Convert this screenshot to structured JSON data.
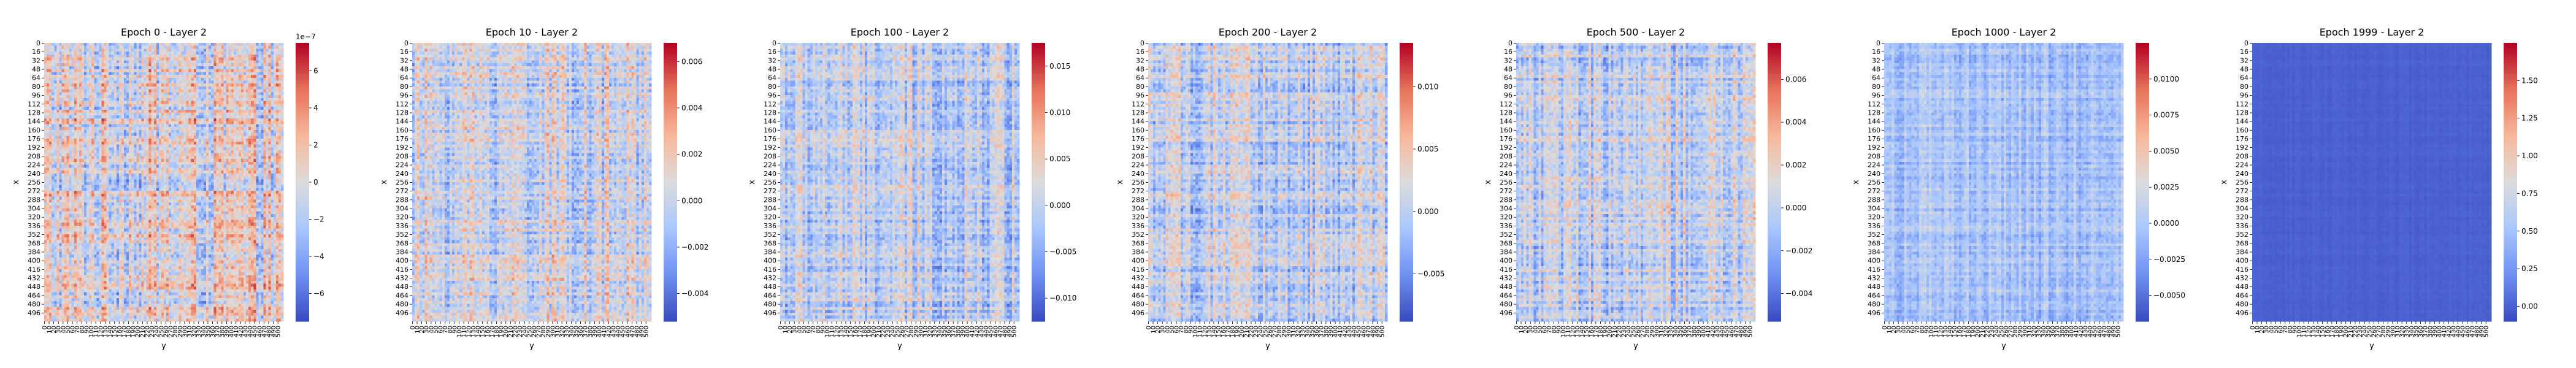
{
  "figure": {
    "panel_count": 7
  },
  "colormap": {
    "name": "coolwarm",
    "stops": [
      "#3b4cc0",
      "#6f92f3",
      "#aac7fd",
      "#dddcdc",
      "#f7b89c",
      "#e7745b",
      "#b40426"
    ]
  },
  "chart_data": [
    {
      "type": "heatmap",
      "title": "Epoch 0 - Layer 2",
      "xlabel": "y",
      "ylabel": "x",
      "x_ticks": [
        "0",
        "10",
        "20",
        "30",
        "40",
        "50",
        "60",
        "70",
        "80",
        "90",
        "100",
        "110",
        "120",
        "130",
        "140",
        "150",
        "160",
        "170",
        "180",
        "190",
        "200",
        "210",
        "220",
        "230",
        "240",
        "250",
        "260",
        "270",
        "280",
        "290",
        "300",
        "310",
        "320",
        "330",
        "340",
        "350",
        "360",
        "370",
        "380",
        "390",
        "400",
        "410",
        "420",
        "430",
        "440",
        "450",
        "460",
        "470",
        "480",
        "490",
        "500"
      ],
      "y_ticks": [
        "0",
        "16",
        "32",
        "48",
        "64",
        "80",
        "96",
        "112",
        "128",
        "144",
        "160",
        "176",
        "192",
        "208",
        "224",
        "240",
        "256",
        "272",
        "288",
        "304",
        "320",
        "336",
        "352",
        "368",
        "384",
        "400",
        "416",
        "432",
        "448",
        "464",
        "480",
        "496"
      ],
      "grid_size": [
        512,
        512
      ],
      "colorbar": {
        "range": [
          -7.5e-07,
          7.5e-07
        ],
        "ticks": [
          "6",
          "4",
          "2",
          "0",
          "−2",
          "−4",
          "−6"
        ],
        "tick_values": [
          6e-07,
          4e-07,
          2e-07,
          0,
          -2e-07,
          -4e-07,
          -6e-07
        ],
        "scale_label": "1e−7"
      },
      "dominant_level": 0.5,
      "contrast": 0.45
    },
    {
      "type": "heatmap",
      "title": "Epoch 10 - Layer 2",
      "xlabel": "y",
      "ylabel": "x",
      "x_ticks": [
        "0",
        "10",
        "20",
        "30",
        "40",
        "50",
        "60",
        "70",
        "80",
        "90",
        "100",
        "110",
        "120",
        "130",
        "140",
        "150",
        "160",
        "170",
        "180",
        "190",
        "200",
        "210",
        "220",
        "230",
        "240",
        "250",
        "260",
        "270",
        "280",
        "290",
        "300",
        "310",
        "320",
        "330",
        "340",
        "350",
        "360",
        "370",
        "380",
        "390",
        "400",
        "410",
        "420",
        "430",
        "440",
        "450",
        "460",
        "470",
        "480",
        "490",
        "500"
      ],
      "y_ticks": [
        "0",
        "16",
        "32",
        "48",
        "64",
        "80",
        "96",
        "112",
        "128",
        "144",
        "160",
        "176",
        "192",
        "208",
        "224",
        "240",
        "256",
        "272",
        "288",
        "304",
        "320",
        "336",
        "352",
        "368",
        "384",
        "400",
        "416",
        "432",
        "448",
        "464",
        "480",
        "496"
      ],
      "grid_size": [
        512,
        512
      ],
      "colorbar": {
        "range": [
          -0.0052,
          0.0068
        ],
        "ticks": [
          "0.006",
          "0.004",
          "0.002",
          "0.000",
          "−0.002",
          "−0.004"
        ],
        "tick_values": [
          0.006,
          0.004,
          0.002,
          0.0,
          -0.002,
          -0.004
        ]
      },
      "dominant_level": 0.45,
      "contrast": 0.38
    },
    {
      "type": "heatmap",
      "title": "Epoch 100 - Layer 2",
      "xlabel": "y",
      "ylabel": "x",
      "x_ticks": [
        "0",
        "10",
        "20",
        "30",
        "40",
        "50",
        "60",
        "70",
        "80",
        "90",
        "100",
        "110",
        "120",
        "130",
        "140",
        "150",
        "160",
        "170",
        "180",
        "190",
        "200",
        "210",
        "220",
        "230",
        "240",
        "250",
        "260",
        "270",
        "280",
        "290",
        "300",
        "310",
        "320",
        "330",
        "340",
        "350",
        "360",
        "370",
        "380",
        "390",
        "400",
        "410",
        "420",
        "430",
        "440",
        "450",
        "460",
        "470",
        "480",
        "490",
        "500"
      ],
      "y_ticks": [
        "0",
        "16",
        "32",
        "48",
        "64",
        "80",
        "96",
        "112",
        "128",
        "144",
        "160",
        "176",
        "192",
        "208",
        "224",
        "240",
        "256",
        "272",
        "288",
        "304",
        "320",
        "336",
        "352",
        "368",
        "384",
        "400",
        "416",
        "432",
        "448",
        "464",
        "480",
        "496"
      ],
      "grid_size": [
        512,
        512
      ],
      "colorbar": {
        "range": [
          -0.0125,
          0.0175
        ],
        "ticks": [
          "0.015",
          "0.010",
          "0.005",
          "0.000",
          "−0.005",
          "−0.010"
        ],
        "tick_values": [
          0.015,
          0.01,
          0.005,
          0.0,
          -0.005,
          -0.01
        ]
      },
      "dominant_level": 0.4,
      "contrast": 0.35
    },
    {
      "type": "heatmap",
      "title": "Epoch 200 - Layer 2",
      "xlabel": "y",
      "ylabel": "x",
      "x_ticks": [
        "0",
        "10",
        "20",
        "30",
        "40",
        "50",
        "60",
        "70",
        "80",
        "90",
        "100",
        "110",
        "120",
        "130",
        "140",
        "150",
        "160",
        "170",
        "180",
        "190",
        "200",
        "210",
        "220",
        "230",
        "240",
        "250",
        "260",
        "270",
        "280",
        "290",
        "300",
        "310",
        "320",
        "330",
        "340",
        "350",
        "360",
        "370",
        "380",
        "390",
        "400",
        "410",
        "420",
        "430",
        "440",
        "450",
        "460",
        "470",
        "480",
        "490",
        "500"
      ],
      "y_ticks": [
        "0",
        "16",
        "32",
        "48",
        "64",
        "80",
        "96",
        "112",
        "128",
        "144",
        "160",
        "176",
        "192",
        "208",
        "224",
        "240",
        "256",
        "272",
        "288",
        "304",
        "320",
        "336",
        "352",
        "368",
        "384",
        "400",
        "416",
        "432",
        "448",
        "464",
        "480",
        "496"
      ],
      "grid_size": [
        512,
        512
      ],
      "colorbar": {
        "range": [
          -0.0088,
          0.0135
        ],
        "ticks": [
          "0.010",
          "0.005",
          "0.000",
          "−0.005"
        ],
        "tick_values": [
          0.01,
          0.005,
          0.0,
          -0.005
        ]
      },
      "dominant_level": 0.4,
      "contrast": 0.35
    },
    {
      "type": "heatmap",
      "title": "Epoch 500 - Layer 2",
      "xlabel": "y",
      "ylabel": "x",
      "x_ticks": [
        "0",
        "10",
        "20",
        "30",
        "40",
        "50",
        "60",
        "70",
        "80",
        "90",
        "100",
        "110",
        "120",
        "130",
        "140",
        "150",
        "160",
        "170",
        "180",
        "190",
        "200",
        "210",
        "220",
        "230",
        "240",
        "250",
        "260",
        "270",
        "280",
        "290",
        "300",
        "310",
        "320",
        "330",
        "340",
        "350",
        "360",
        "370",
        "380",
        "390",
        "400",
        "410",
        "420",
        "430",
        "440",
        "450",
        "460",
        "470",
        "480",
        "490",
        "500"
      ],
      "y_ticks": [
        "0",
        "16",
        "32",
        "48",
        "64",
        "80",
        "96",
        "112",
        "128",
        "144",
        "160",
        "176",
        "192",
        "208",
        "224",
        "240",
        "256",
        "272",
        "288",
        "304",
        "320",
        "336",
        "352",
        "368",
        "384",
        "400",
        "416",
        "432",
        "448",
        "464",
        "480",
        "496"
      ],
      "grid_size": [
        512,
        512
      ],
      "colorbar": {
        "range": [
          -0.0053,
          0.0077
        ],
        "ticks": [
          "0.006",
          "0.004",
          "0.002",
          "0.000",
          "−0.002",
          "−0.004"
        ],
        "tick_values": [
          0.006,
          0.004,
          0.002,
          0.0,
          -0.002,
          -0.004
        ]
      },
      "dominant_level": 0.4,
      "contrast": 0.35
    },
    {
      "type": "heatmap",
      "title": "Epoch 1000 - Layer 2",
      "xlabel": "y",
      "ylabel": "x",
      "x_ticks": [
        "0",
        "10",
        "20",
        "30",
        "40",
        "50",
        "60",
        "70",
        "80",
        "90",
        "100",
        "110",
        "120",
        "130",
        "140",
        "150",
        "160",
        "170",
        "180",
        "190",
        "200",
        "210",
        "220",
        "230",
        "240",
        "250",
        "260",
        "270",
        "280",
        "290",
        "300",
        "310",
        "320",
        "330",
        "340",
        "350",
        "360",
        "370",
        "380",
        "390",
        "400",
        "410",
        "420",
        "430",
        "440",
        "450",
        "460",
        "470",
        "480",
        "490",
        "500"
      ],
      "y_ticks": [
        "0",
        "16",
        "32",
        "48",
        "64",
        "80",
        "96",
        "112",
        "128",
        "144",
        "160",
        "176",
        "192",
        "208",
        "224",
        "240",
        "256",
        "272",
        "288",
        "304",
        "320",
        "336",
        "352",
        "368",
        "384",
        "400",
        "416",
        "432",
        "448",
        "464",
        "480",
        "496"
      ],
      "grid_size": [
        512,
        512
      ],
      "colorbar": {
        "range": [
          -0.0068,
          0.0125
        ],
        "ticks": [
          "0.0100",
          "0.0075",
          "0.0050",
          "0.0025",
          "0.0000",
          "−0.0025",
          "−0.0050"
        ],
        "tick_values": [
          0.01,
          0.0075,
          0.005,
          0.0025,
          0.0,
          -0.0025,
          -0.005
        ]
      },
      "dominant_level": 0.33,
      "contrast": 0.2
    },
    {
      "type": "heatmap",
      "title": "Epoch 1999 - Layer 2",
      "xlabel": "y",
      "ylabel": "x",
      "x_ticks": [
        "0",
        "10",
        "20",
        "30",
        "40",
        "50",
        "60",
        "70",
        "80",
        "90",
        "100",
        "110",
        "120",
        "130",
        "140",
        "150",
        "160",
        "170",
        "180",
        "190",
        "200",
        "210",
        "220",
        "230",
        "240",
        "250",
        "260",
        "270",
        "280",
        "290",
        "300",
        "310",
        "320",
        "330",
        "340",
        "350",
        "360",
        "370",
        "380",
        "390",
        "400",
        "410",
        "420",
        "430",
        "440",
        "450",
        "460",
        "470",
        "480",
        "490",
        "500"
      ],
      "y_ticks": [
        "0",
        "16",
        "32",
        "48",
        "64",
        "80",
        "96",
        "112",
        "128",
        "144",
        "160",
        "176",
        "192",
        "208",
        "224",
        "240",
        "256",
        "272",
        "288",
        "304",
        "320",
        "336",
        "352",
        "368",
        "384",
        "400",
        "416",
        "432",
        "448",
        "464",
        "480",
        "496"
      ],
      "grid_size": [
        512,
        512
      ],
      "colorbar": {
        "range": [
          -0.1,
          1.75
        ],
        "ticks": [
          "1.50",
          "1.25",
          "1.00",
          "0.75",
          "0.50",
          "0.25",
          "0.00"
        ],
        "tick_values": [
          1.5,
          1.25,
          1.0,
          0.75,
          0.5,
          0.25,
          0.0
        ]
      },
      "dominant_level": 0.05,
      "contrast": 0.02
    }
  ]
}
